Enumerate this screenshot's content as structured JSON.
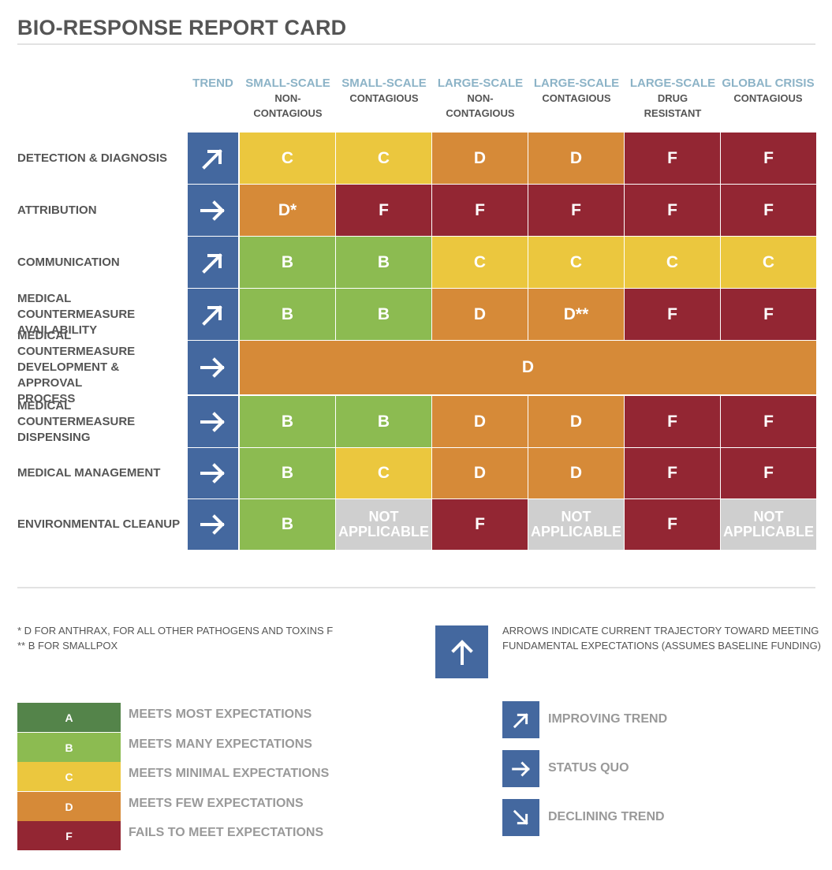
{
  "title": "BIO-RESPONSE REPORT CARD",
  "colors": {
    "A": "#54844a",
    "B": "#8cbb51",
    "C": "#ebc73e",
    "D": "#d68a38",
    "F": "#932633",
    "NA": "#cfcfcf",
    "trend": "#44689f",
    "header_accent": "#8cb3c7"
  },
  "columns": [
    {
      "top": "TREND",
      "sub": ""
    },
    {
      "top": "SMALL-SCALE",
      "sub": "NON-\nCONTAGIOUS"
    },
    {
      "top": "SMALL-SCALE",
      "sub": "CONTAGIOUS"
    },
    {
      "top": "LARGE-SCALE",
      "sub": "NON-\nCONTAGIOUS"
    },
    {
      "top": "LARGE-SCALE",
      "sub": "CONTAGIOUS"
    },
    {
      "top": "LARGE-SCALE",
      "sub": "DRUG\nRESISTANT"
    },
    {
      "top": "GLOBAL CRISIS",
      "sub": "CONTAGIOUS"
    }
  ],
  "rows": [
    {
      "label": "DETECTION & DIAGNOSIS",
      "trend": "improving",
      "grades": [
        "C",
        "C",
        "D",
        "D",
        "F",
        "F"
      ],
      "display": [
        "C",
        "C",
        "D",
        "D",
        "F",
        "F"
      ]
    },
    {
      "label": "ATTRIBUTION",
      "trend": "status-quo",
      "grades": [
        "D",
        "F",
        "F",
        "F",
        "F",
        "F"
      ],
      "display": [
        "D*",
        "F",
        "F",
        "F",
        "F",
        "F"
      ]
    },
    {
      "label": "COMMUNICATION",
      "trend": "improving",
      "grades": [
        "B",
        "B",
        "C",
        "C",
        "C",
        "C"
      ],
      "display": [
        "B",
        "B",
        "C",
        "C",
        "C",
        "C"
      ]
    },
    {
      "label": "MEDICAL COUNTERMEASURE\nAVAILABILITY",
      "trend": "improving",
      "grades": [
        "B",
        "B",
        "D",
        "D",
        "F",
        "F"
      ],
      "display": [
        "B",
        "B",
        "D",
        "D**",
        "F",
        "F"
      ]
    },
    {
      "label": "MEDICAL COUNTERMEASURE\nDEVELOPMENT & APPROVAL\nPROCESS",
      "trend": "status-quo",
      "merged": true,
      "grades": [
        "D"
      ],
      "display": [
        "D"
      ]
    },
    {
      "label": "MEDICAL COUNTERMEASURE\nDISPENSING",
      "trend": "status-quo",
      "grades": [
        "B",
        "B",
        "D",
        "D",
        "F",
        "F"
      ],
      "display": [
        "B",
        "B",
        "D",
        "D",
        "F",
        "F"
      ]
    },
    {
      "label": "MEDICAL MANAGEMENT",
      "trend": "status-quo",
      "grades": [
        "B",
        "C",
        "D",
        "D",
        "F",
        "F"
      ],
      "display": [
        "B",
        "C",
        "D",
        "D",
        "F",
        "F"
      ]
    },
    {
      "label": "ENVIRONMENTAL CLEANUP",
      "trend": "status-quo",
      "grades": [
        "B",
        "NA",
        "F",
        "NA",
        "F",
        "NA"
      ],
      "display": [
        "B",
        "NOT\nAPPLICABLE",
        "F",
        "NOT\nAPPLICABLE",
        "F",
        "NOT\nAPPLICABLE"
      ]
    }
  ],
  "footnotes": {
    "one": "*   D FOR ANTHRAX, FOR ALL OTHER PATHOGENS AND TOXINS F",
    "two": "**  B FOR SMALLPOX"
  },
  "arrow_note": "ARROWS INDICATE CURRENT TRAJECTORY TOWARD MEETING\nFUNDAMENTAL EXPECTATIONS (ASSUMES BASELINE FUNDING)",
  "grade_legend": [
    {
      "grade": "A",
      "label": "MEETS MOST EXPECTATIONS"
    },
    {
      "grade": "B",
      "label": "MEETS MANY EXPECTATIONS"
    },
    {
      "grade": "C",
      "label": "MEETS MINIMAL EXPECTATIONS"
    },
    {
      "grade": "D",
      "label": "MEETS FEW EXPECTATIONS"
    },
    {
      "grade": "F",
      "label": "FAILS TO MEET EXPECTATIONS"
    }
  ],
  "trend_legend": [
    {
      "trend": "improving",
      "label": "IMPROVING TREND"
    },
    {
      "trend": "status-quo",
      "label": "STATUS QUO"
    },
    {
      "trend": "declining",
      "label": "DECLINING TREND"
    }
  ]
}
